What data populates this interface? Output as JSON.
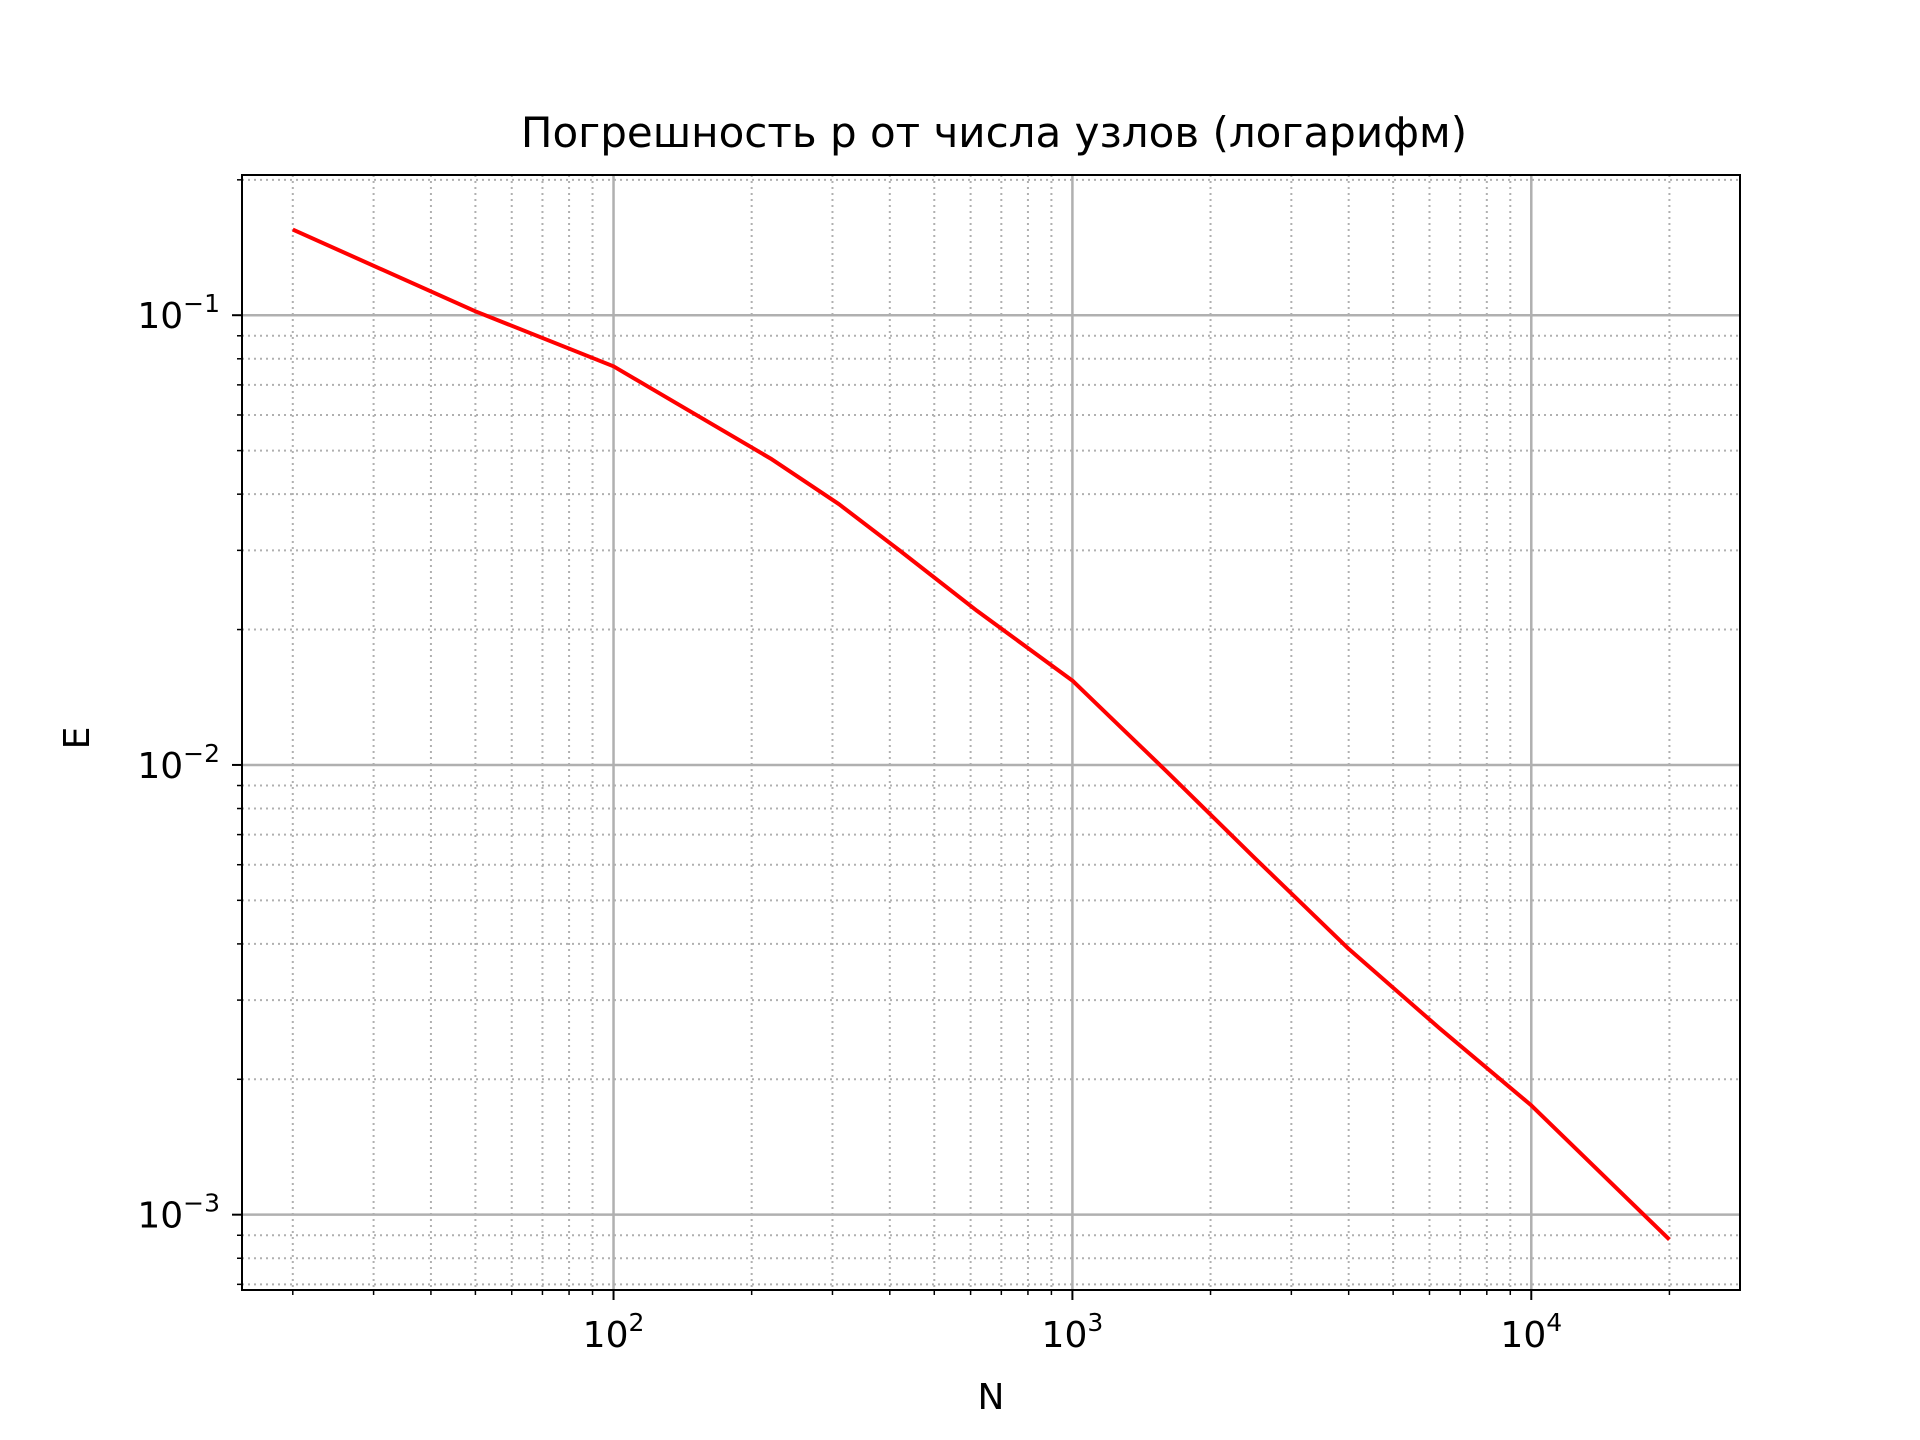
{
  "chart_data": {
    "type": "line",
    "title": "Погрешность p от числа узлов (логарифм)",
    "xlabel": "N",
    "ylabel": "E",
    "x_scale": "log",
    "y_scale": "log",
    "xlim": [
      15.5,
      28500
    ],
    "ylim": [
      0.00068,
      0.205
    ],
    "grid": true,
    "x_ticks": [
      {
        "value": 100,
        "base": "10",
        "exp": "2"
      },
      {
        "value": 1000,
        "base": "10",
        "exp": "3"
      },
      {
        "value": 10000,
        "base": "10",
        "exp": "4"
      }
    ],
    "y_ticks": [
      {
        "value": 0.1,
        "base": "10",
        "exp": "−1"
      },
      {
        "value": 0.01,
        "base": "10",
        "exp": "−2"
      },
      {
        "value": 0.001,
        "base": "10",
        "exp": "−3"
      }
    ],
    "series": [
      {
        "color": "#ff0000",
        "x": [
          20,
          50,
          100,
          120,
          220,
          310,
          420,
          620,
          1000,
          1600,
          2500,
          4000,
          6300,
          10000,
          20000
        ],
        "y": [
          0.155,
          0.102,
          0.077,
          0.069,
          0.048,
          0.038,
          0.03,
          0.022,
          0.0154,
          0.0097,
          0.0062,
          0.0039,
          0.0026,
          0.00175,
          0.00088
        ]
      }
    ]
  }
}
